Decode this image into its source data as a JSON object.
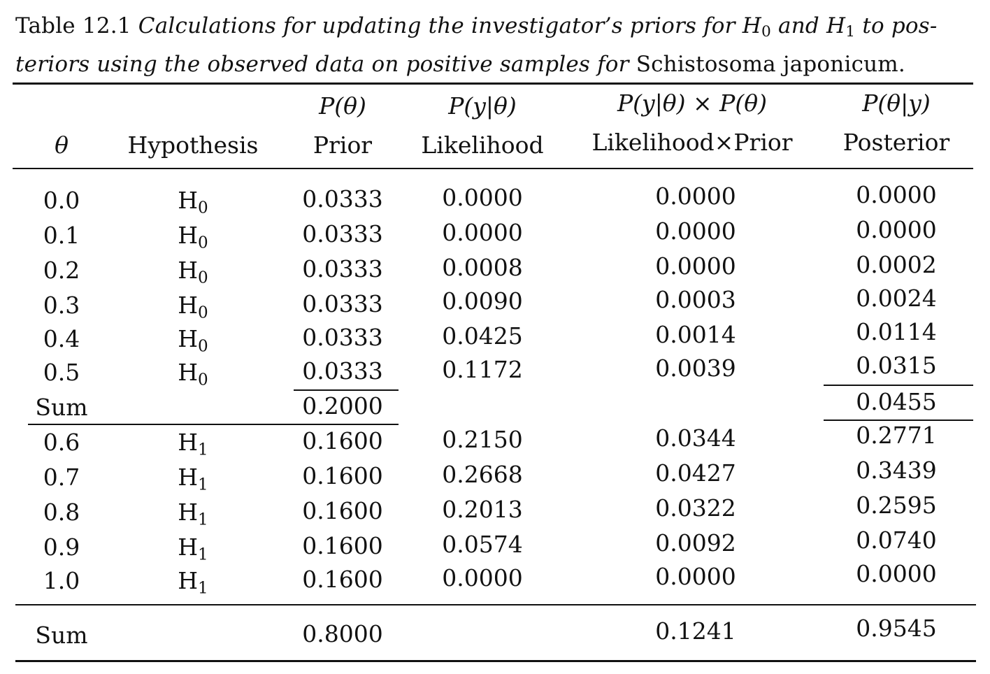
{
  "caption": {
    "label": "Table 12.1",
    "line1_italic": "Calculations for updating the investigator’s priors for",
    "h0_letter": "H",
    "h0_sub": "0",
    "and_word": "and",
    "h1_letter": "H",
    "h1_sub": "1",
    "line1_tail": "to pos-",
    "line2_italic": "teriors using the observed data on positive samples for",
    "species": "Schistosoma japonicum."
  },
  "headers": {
    "theta": "θ",
    "hypothesis": "Hypothesis",
    "prior_math": "P(θ)",
    "prior_label": "Prior",
    "likelihood_math": "P(y|θ)",
    "likelihood_label": "Likelihood",
    "product_math": "P(y|θ) × P(θ)",
    "product_label": "Likelihood×Prior",
    "posterior_math": "P(θ|y)",
    "posterior_label": "Posterior"
  },
  "h0_rows": [
    {
      "theta": "0.0",
      "hyp": "H",
      "hyp_sub": "0",
      "prior": "0.0333",
      "likelihood": "0.0000",
      "product": "0.0000",
      "posterior": "0.0000"
    },
    {
      "theta": "0.1",
      "hyp": "H",
      "hyp_sub": "0",
      "prior": "0.0333",
      "likelihood": "0.0000",
      "product": "0.0000",
      "posterior": "0.0000"
    },
    {
      "theta": "0.2",
      "hyp": "H",
      "hyp_sub": "0",
      "prior": "0.0333",
      "likelihood": "0.0008",
      "product": "0.0000",
      "posterior": "0.0002"
    },
    {
      "theta": "0.3",
      "hyp": "H",
      "hyp_sub": "0",
      "prior": "0.0333",
      "likelihood": "0.0090",
      "product": "0.0003",
      "posterior": "0.0024"
    },
    {
      "theta": "0.4",
      "hyp": "H",
      "hyp_sub": "0",
      "prior": "0.0333",
      "likelihood": "0.0425",
      "product": "0.0014",
      "posterior": "0.0114"
    },
    {
      "theta": "0.5",
      "hyp": "H",
      "hyp_sub": "0",
      "prior": "0.0333",
      "likelihood": "0.1172",
      "product": "0.0039",
      "posterior": "0.0315"
    }
  ],
  "h0_sum": {
    "label": "Sum",
    "prior": "0.2000",
    "posterior": "0.0455"
  },
  "h1_rows": [
    {
      "theta": "0.6",
      "hyp": "H",
      "hyp_sub": "1",
      "prior": "0.1600",
      "likelihood": "0.2150",
      "product": "0.0344",
      "posterior": "0.2771"
    },
    {
      "theta": "0.7",
      "hyp": "H",
      "hyp_sub": "1",
      "prior": "0.1600",
      "likelihood": "0.2668",
      "product": "0.0427",
      "posterior": "0.3439"
    },
    {
      "theta": "0.8",
      "hyp": "H",
      "hyp_sub": "1",
      "prior": "0.1600",
      "likelihood": "0.2013",
      "product": "0.0322",
      "posterior": "0.2595"
    },
    {
      "theta": "0.9",
      "hyp": "H",
      "hyp_sub": "1",
      "prior": "0.1600",
      "likelihood": "0.0574",
      "product": "0.0092",
      "posterior": "0.0740"
    },
    {
      "theta": "1.0",
      "hyp": "H",
      "hyp_sub": "1",
      "prior": "0.1600",
      "likelihood": "0.0000",
      "product": "0.0000",
      "posterior": "0.0000"
    }
  ],
  "total": {
    "label": "Sum",
    "prior": "0.8000",
    "product": "0.1241",
    "posterior": "0.9545"
  }
}
